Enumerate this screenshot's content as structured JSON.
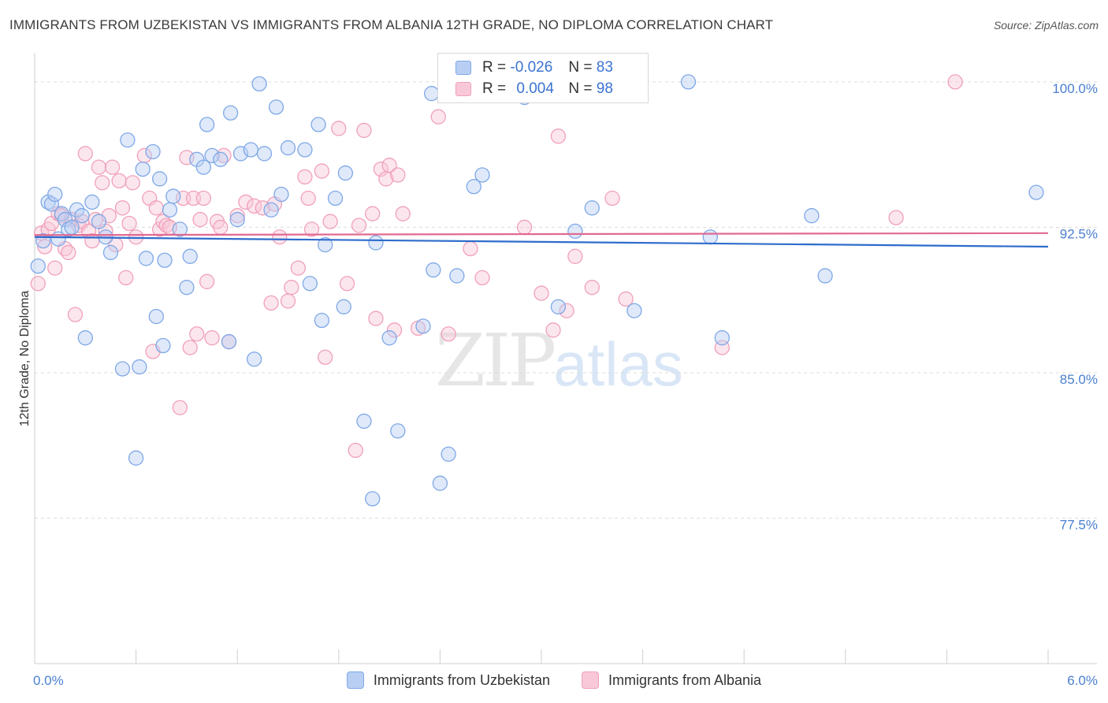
{
  "title": "IMMIGRANTS FROM UZBEKISTAN VS IMMIGRANTS FROM ALBANIA 12TH GRADE, NO DIPLOMA CORRELATION CHART",
  "source": "Source: ZipAtlas.com",
  "watermark": {
    "zip": "ZIP",
    "atlas": "atlas"
  },
  "legend": {
    "rows": [
      {
        "r_label": "R =",
        "r_value": "-0.026",
        "n_label": "N =",
        "n_value": "83"
      },
      {
        "r_label": "R =",
        "r_value": "0.004",
        "n_label": "N =",
        "n_value": "98"
      }
    ]
  },
  "chart_data": {
    "type": "scatter",
    "title": "IMMIGRANTS FROM UZBEKISTAN VS IMMIGRANTS FROM ALBANIA 12TH GRADE, NO DIPLOMA CORRELATION CHART",
    "xlabel": "",
    "ylabel": "12th Grade, No Diploma",
    "xlim": [
      0,
      6
    ],
    "ylim": [
      70,
      101.5
    ],
    "x_tick_labels": [
      "0.0%",
      "6.0%"
    ],
    "y_ticks": [
      77.5,
      85.0,
      92.5,
      100.0
    ],
    "y_tick_labels": [
      "77.5%",
      "85.0%",
      "92.5%",
      "100.0%"
    ],
    "grid": true,
    "colors": {
      "uzbekistan": "#7fa8e6",
      "albania": "#f0a0bb",
      "uz_line": "#2f6ccc",
      "al_line": "#e06a92"
    },
    "series": [
      {
        "name": "Immigrants from Uzbekistan",
        "trend": [
          [
            0,
            92.0
          ],
          [
            6,
            91.5
          ]
        ],
        "points": [
          [
            0.02,
            90.5
          ],
          [
            0.05,
            91.8
          ],
          [
            0.08,
            93.8
          ],
          [
            0.1,
            93.7
          ],
          [
            0.12,
            94.2
          ],
          [
            0.14,
            91.9
          ],
          [
            0.16,
            93.2
          ],
          [
            0.18,
            92.9
          ],
          [
            0.2,
            92.4
          ],
          [
            0.22,
            92.5
          ],
          [
            0.25,
            93.4
          ],
          [
            0.28,
            93.1
          ],
          [
            0.3,
            86.8
          ],
          [
            0.34,
            93.8
          ],
          [
            0.38,
            92.8
          ],
          [
            0.42,
            92.0
          ],
          [
            0.45,
            91.2
          ],
          [
            0.52,
            85.2
          ],
          [
            0.55,
            97.0
          ],
          [
            0.6,
            80.6
          ],
          [
            0.62,
            85.3
          ],
          [
            0.64,
            95.5
          ],
          [
            0.66,
            90.9
          ],
          [
            0.7,
            96.4
          ],
          [
            0.72,
            87.9
          ],
          [
            0.74,
            95.0
          ],
          [
            0.76,
            86.4
          ],
          [
            0.77,
            90.8
          ],
          [
            0.8,
            93.4
          ],
          [
            0.82,
            94.1
          ],
          [
            0.86,
            92.4
          ],
          [
            0.9,
            89.4
          ],
          [
            0.92,
            91.0
          ],
          [
            0.96,
            96.0
          ],
          [
            1.0,
            95.6
          ],
          [
            1.02,
            97.8
          ],
          [
            1.05,
            96.2
          ],
          [
            1.1,
            96.0
          ],
          [
            1.15,
            86.6
          ],
          [
            1.16,
            98.4
          ],
          [
            1.2,
            92.9
          ],
          [
            1.22,
            96.3
          ],
          [
            1.28,
            96.5
          ],
          [
            1.3,
            85.7
          ],
          [
            1.33,
            99.9
          ],
          [
            1.36,
            96.3
          ],
          [
            1.4,
            93.4
          ],
          [
            1.43,
            98.7
          ],
          [
            1.46,
            94.2
          ],
          [
            1.5,
            96.6
          ],
          [
            1.6,
            96.5
          ],
          [
            1.63,
            89.6
          ],
          [
            1.68,
            97.8
          ],
          [
            1.7,
            87.7
          ],
          [
            1.72,
            91.6
          ],
          [
            1.78,
            94.0
          ],
          [
            1.83,
            88.4
          ],
          [
            1.84,
            95.3
          ],
          [
            1.95,
            82.5
          ],
          [
            2.0,
            78.5
          ],
          [
            2.02,
            91.7
          ],
          [
            2.1,
            86.8
          ],
          [
            2.15,
            82.0
          ],
          [
            2.3,
            87.4
          ],
          [
            2.35,
            99.4
          ],
          [
            2.36,
            90.3
          ],
          [
            2.4,
            79.3
          ],
          [
            2.45,
            80.8
          ],
          [
            2.5,
            90.0
          ],
          [
            2.6,
            94.6
          ],
          [
            2.65,
            95.2
          ],
          [
            2.9,
            99.2
          ],
          [
            3.1,
            100.0
          ],
          [
            3.1,
            88.4
          ],
          [
            3.2,
            92.3
          ],
          [
            3.3,
            93.5
          ],
          [
            3.55,
            88.2
          ],
          [
            3.87,
            100.0
          ],
          [
            4.0,
            92.0
          ],
          [
            4.07,
            86.8
          ],
          [
            4.6,
            93.1
          ],
          [
            4.68,
            90.0
          ],
          [
            5.93,
            94.3
          ]
        ]
      },
      {
        "name": "Immigrants from Albania",
        "trend": [
          [
            0,
            92.1
          ],
          [
            6,
            92.2
          ]
        ],
        "points": [
          [
            0.02,
            89.6
          ],
          [
            0.04,
            92.2
          ],
          [
            0.06,
            91.5
          ],
          [
            0.08,
            92.4
          ],
          [
            0.1,
            92.7
          ],
          [
            0.12,
            90.4
          ],
          [
            0.14,
            93.2
          ],
          [
            0.16,
            93.1
          ],
          [
            0.18,
            91.4
          ],
          [
            0.2,
            91.2
          ],
          [
            0.22,
            92.9
          ],
          [
            0.24,
            88.0
          ],
          [
            0.26,
            92.6
          ],
          [
            0.28,
            92.8
          ],
          [
            0.3,
            96.3
          ],
          [
            0.32,
            92.3
          ],
          [
            0.34,
            91.8
          ],
          [
            0.36,
            92.9
          ],
          [
            0.38,
            95.6
          ],
          [
            0.4,
            94.8
          ],
          [
            0.42,
            92.3
          ],
          [
            0.44,
            93.1
          ],
          [
            0.46,
            95.6
          ],
          [
            0.48,
            91.6
          ],
          [
            0.5,
            94.9
          ],
          [
            0.52,
            93.5
          ],
          [
            0.54,
            89.9
          ],
          [
            0.56,
            92.7
          ],
          [
            0.58,
            94.8
          ],
          [
            0.6,
            92.0
          ],
          [
            0.65,
            96.2
          ],
          [
            0.68,
            94.0
          ],
          [
            0.7,
            86.1
          ],
          [
            0.72,
            93.5
          ],
          [
            0.74,
            92.4
          ],
          [
            0.76,
            92.8
          ],
          [
            0.78,
            92.6
          ],
          [
            0.8,
            92.5
          ],
          [
            0.86,
            83.2
          ],
          [
            0.88,
            94.0
          ],
          [
            0.9,
            96.1
          ],
          [
            0.92,
            86.3
          ],
          [
            0.94,
            94.0
          ],
          [
            0.96,
            87.0
          ],
          [
            0.98,
            92.9
          ],
          [
            1.0,
            94.0
          ],
          [
            1.02,
            89.7
          ],
          [
            1.05,
            86.8
          ],
          [
            1.08,
            92.8
          ],
          [
            1.1,
            92.5
          ],
          [
            1.12,
            96.2
          ],
          [
            1.15,
            86.6
          ],
          [
            1.2,
            93.1
          ],
          [
            1.25,
            93.8
          ],
          [
            1.3,
            93.6
          ],
          [
            1.35,
            93.5
          ],
          [
            1.4,
            88.6
          ],
          [
            1.42,
            93.7
          ],
          [
            1.45,
            92.0
          ],
          [
            1.5,
            88.7
          ],
          [
            1.52,
            89.4
          ],
          [
            1.56,
            90.4
          ],
          [
            1.6,
            95.1
          ],
          [
            1.62,
            94.0
          ],
          [
            1.64,
            92.4
          ],
          [
            1.7,
            95.4
          ],
          [
            1.72,
            85.8
          ],
          [
            1.75,
            92.8
          ],
          [
            1.8,
            97.6
          ],
          [
            1.85,
            89.6
          ],
          [
            1.9,
            81.0
          ],
          [
            1.92,
            92.6
          ],
          [
            1.95,
            97.5
          ],
          [
            2.0,
            93.2
          ],
          [
            2.02,
            87.8
          ],
          [
            2.05,
            95.5
          ],
          [
            2.08,
            95.0
          ],
          [
            2.1,
            95.7
          ],
          [
            2.13,
            87.2
          ],
          [
            2.15,
            95.2
          ],
          [
            2.18,
            93.2
          ],
          [
            2.27,
            87.3
          ],
          [
            2.39,
            98.2
          ],
          [
            2.45,
            87.0
          ],
          [
            2.58,
            91.4
          ],
          [
            2.65,
            89.9
          ],
          [
            2.9,
            92.5
          ],
          [
            3.0,
            89.1
          ],
          [
            3.07,
            87.2
          ],
          [
            3.1,
            97.2
          ],
          [
            3.15,
            88.2
          ],
          [
            3.2,
            91.0
          ],
          [
            3.3,
            89.4
          ],
          [
            3.42,
            94.0
          ],
          [
            3.5,
            88.8
          ],
          [
            4.07,
            86.3
          ],
          [
            5.1,
            93.0
          ],
          [
            5.45,
            100.0
          ]
        ]
      }
    ]
  },
  "bottom_legend": [
    "Immigrants from Uzbekistan",
    "Immigrants from Albania"
  ]
}
